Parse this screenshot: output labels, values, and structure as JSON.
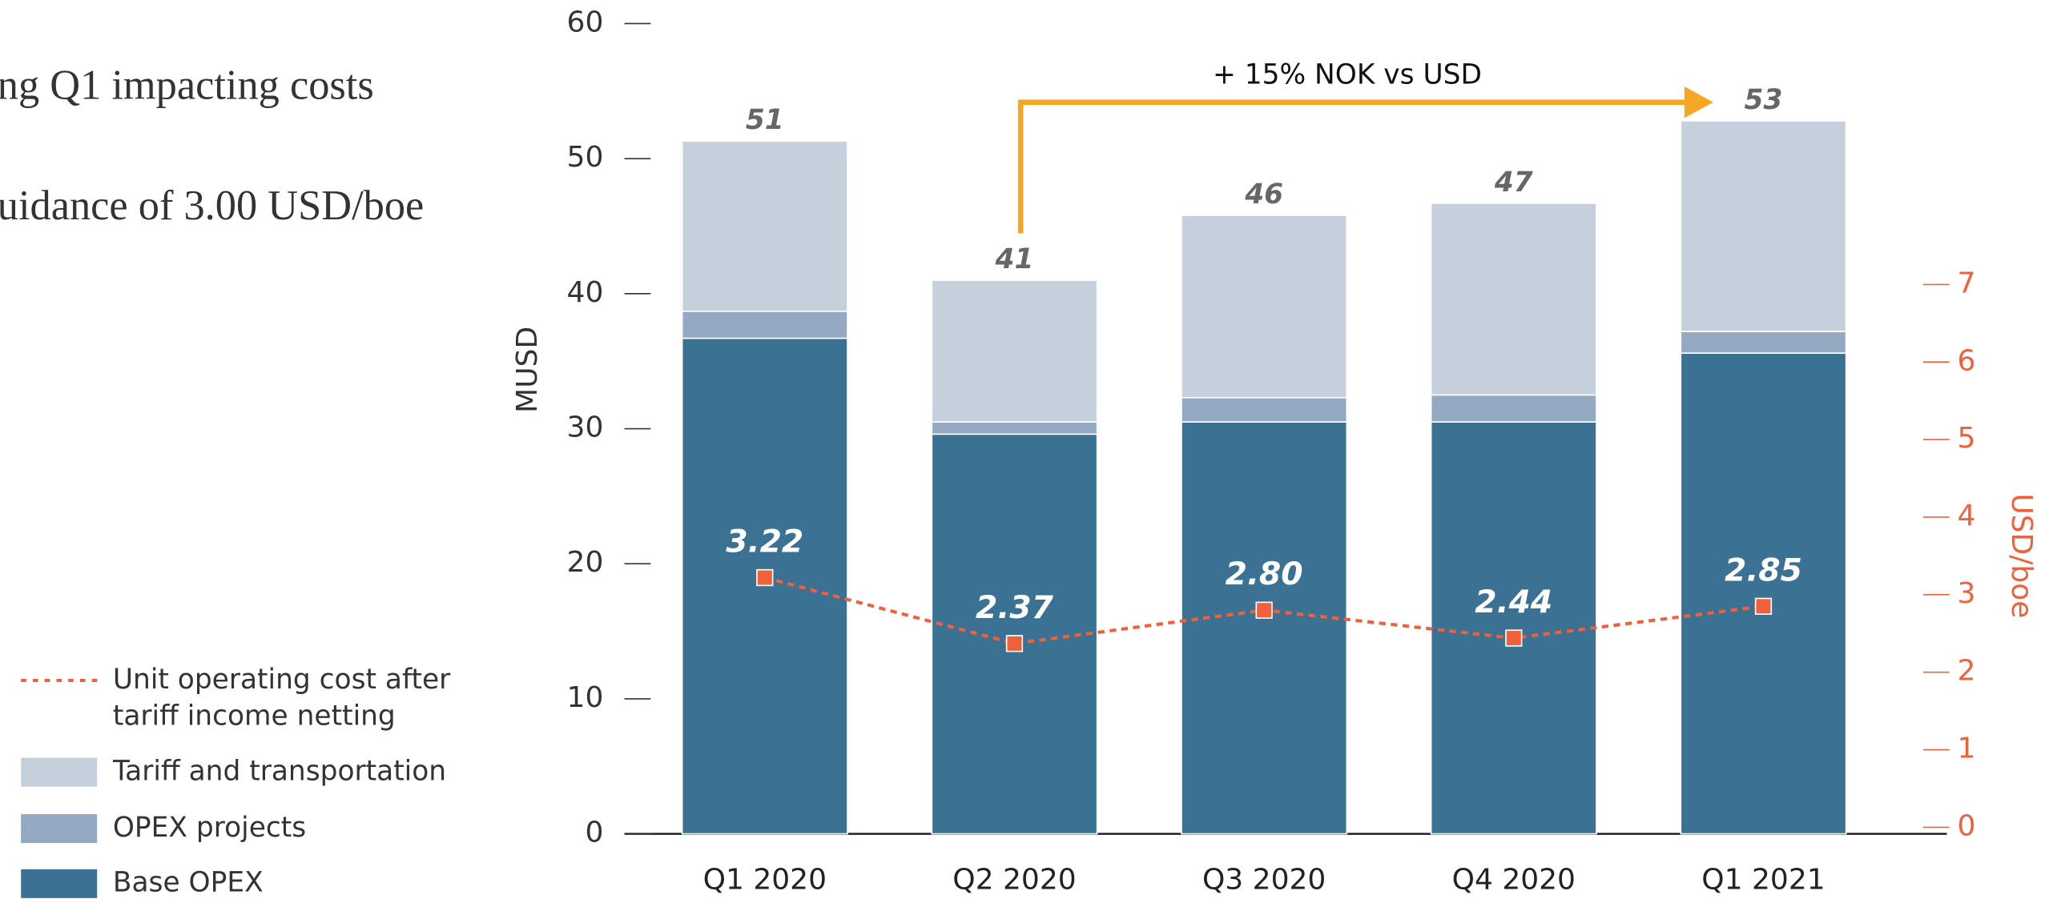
{
  "chart_data": {
    "type": "bar",
    "stacked": true,
    "side_text": [
      "ng Q1 impacting costs",
      "uidance of 3.00 USD/boe"
    ],
    "annotation": "+ 15% NOK vs USD",
    "ylabel": "MUSD",
    "y2label": "USD/boe",
    "categories": [
      "Q1 2020",
      "Q2 2020",
      "Q3 2020",
      "Q4 2020",
      "Q1 2021"
    ],
    "series": [
      {
        "name": "Base OPEX",
        "color": "#3b7294",
        "values": [
          36.7,
          29.6,
          30.5,
          30.5,
          35.6
        ]
      },
      {
        "name": "OPEX projects",
        "color": "#93a9c2",
        "values": [
          2.0,
          0.9,
          1.8,
          2.0,
          1.6
        ]
      },
      {
        "name": "Tariff and transportation",
        "color": "#c5d0dc",
        "values": [
          12.6,
          10.5,
          13.5,
          14.2,
          15.6
        ]
      },
      {
        "name": "Unit operating cost after tariff income netting",
        "color": "#f0603a",
        "type": "line",
        "axis": "y2",
        "values": [
          3.22,
          2.37,
          2.8,
          2.44,
          2.85
        ],
        "value_labels": [
          "3.22",
          "2.37",
          "2.80",
          "2.44",
          "2.85"
        ]
      }
    ],
    "total_labels": [
      "51",
      "41",
      "46",
      "47",
      "53"
    ],
    "ylim": [
      0,
      60
    ],
    "yticks": [
      0,
      10,
      20,
      30,
      40,
      50,
      60
    ],
    "y2lim": [
      0,
      7
    ],
    "y2ticks": [
      0,
      1,
      2,
      3,
      4,
      5,
      6,
      7
    ]
  }
}
